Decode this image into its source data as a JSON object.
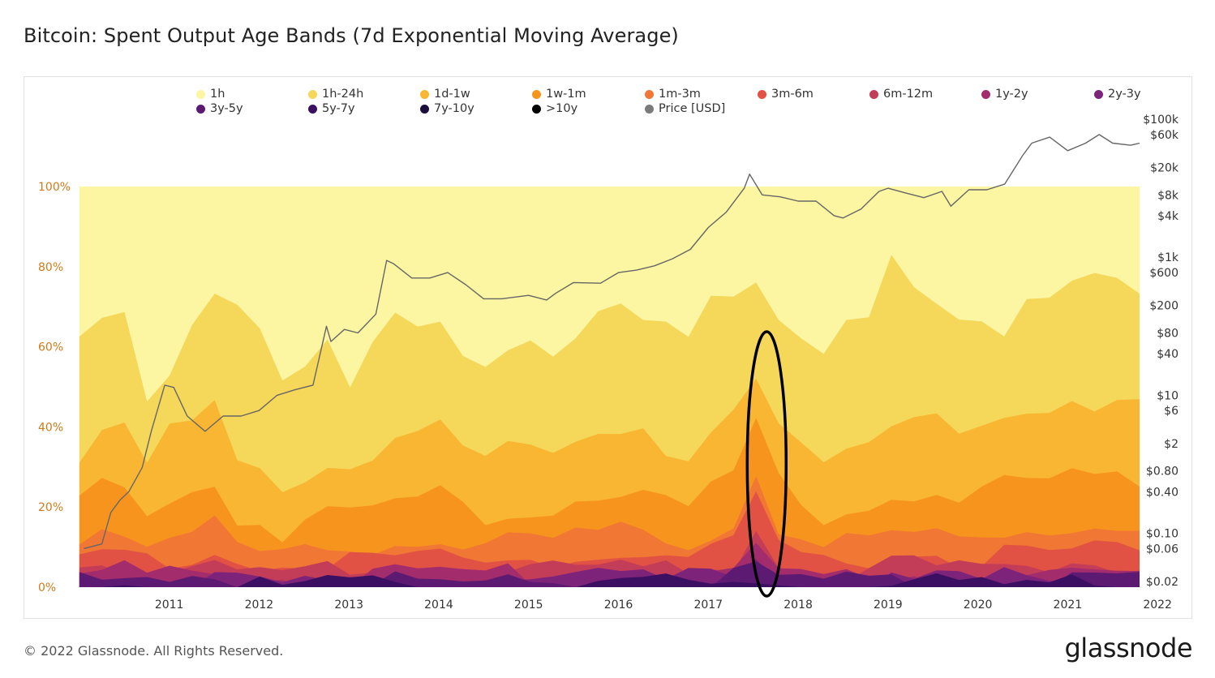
{
  "title": "Bitcoin: Spent Output Age Bands (7d Exponential Moving Average)",
  "footer": {
    "copyright": "© 2022 Glassnode. All Rights Reserved.",
    "logo": "glassnode"
  },
  "watermark": "glassnode",
  "legend": [
    {
      "label": "1h",
      "color": "#fcf5a2"
    },
    {
      "label": "1h-24h",
      "color": "#f5d75a"
    },
    {
      "label": "1d-1w",
      "color": "#f8b632"
    },
    {
      "label": "1w-1m",
      "color": "#f7941e"
    },
    {
      "label": "1m-3m",
      "color": "#f07734"
    },
    {
      "label": "3m-6m",
      "color": "#e15144"
    },
    {
      "label": "6m-12m",
      "color": "#c43d58"
    },
    {
      "label": "1y-2y",
      "color": "#a32c6c"
    },
    {
      "label": "2y-3y",
      "color": "#7d2379"
    },
    {
      "label": "3y-5y",
      "color": "#5c1a72"
    },
    {
      "label": "5y-7y",
      "color": "#3b1063"
    },
    {
      "label": "7y-10y",
      "color": "#1a0e3c"
    },
    {
      "label": ">10y",
      "color": "#000000"
    },
    {
      "label": "Price [USD]",
      "color": "#7a7a7a"
    }
  ],
  "chart_data": {
    "type": "area",
    "stacked": true,
    "normalized": true,
    "x_ticks": [
      "2011",
      "2012",
      "2013",
      "2014",
      "2015",
      "2016",
      "2017",
      "2018",
      "2019",
      "2020",
      "2021",
      "2022"
    ],
    "y_left_ticks": [
      "0%",
      "20%",
      "40%",
      "60%",
      "80%",
      "100%"
    ],
    "y_left_range": [
      0,
      100
    ],
    "y_right_scale": "log",
    "y_right_ticks": [
      {
        "label": "$100k",
        "value": 100000
      },
      {
        "label": "$60k",
        "value": 60000
      },
      {
        "label": "$20k",
        "value": 20000
      },
      {
        "label": "$8k",
        "value": 8000
      },
      {
        "label": "$4k",
        "value": 4000
      },
      {
        "label": "$1k",
        "value": 1000
      },
      {
        "label": "$600",
        "value": 600
      },
      {
        "label": "$200",
        "value": 200
      },
      {
        "label": "$80",
        "value": 80
      },
      {
        "label": "$40",
        "value": 40
      },
      {
        "label": "$10",
        "value": 10
      },
      {
        "label": "$6",
        "value": 6
      },
      {
        "label": "$2",
        "value": 2
      },
      {
        "label": "$0.80",
        "value": 0.8
      },
      {
        "label": "$0.40",
        "value": 0.4
      },
      {
        "label": "$0.10",
        "value": 0.1
      },
      {
        "label": "$0.06",
        "value": 0.06
      },
      {
        "label": "$0.02",
        "value": 0.02
      }
    ],
    "cumulative_series": [
      {
        "name": "1h",
        "color": "#fcf5a2",
        "values": [
          100,
          100,
          100,
          100,
          100,
          100,
          100,
          100,
          100,
          100,
          100,
          100,
          100,
          100,
          100,
          100,
          100,
          100,
          100,
          100,
          100,
          100,
          100,
          100,
          100,
          100,
          100,
          100,
          100,
          100,
          100,
          100,
          100,
          100,
          100,
          100,
          100,
          100,
          100,
          100,
          100,
          100,
          100,
          100,
          100,
          100,
          100,
          100
        ]
      },
      {
        "name": "1h-24h",
        "color": "#f5d75a",
        "values": [
          62,
          68,
          70,
          48,
          55,
          66,
          74,
          72,
          66,
          50,
          55,
          60,
          48,
          60,
          66,
          64,
          68,
          60,
          55,
          60,
          62,
          58,
          65,
          67,
          68,
          66,
          64,
          62,
          70,
          72,
          75,
          68,
          64,
          60,
          68,
          70,
          84,
          75,
          70,
          66,
          64,
          60,
          70,
          72,
          75,
          76,
          78,
          76
        ]
      },
      {
        "name": "1d-1w",
        "color": "#f8b632",
        "values": [
          34,
          42,
          40,
          30,
          38,
          40,
          45,
          30,
          28,
          25,
          28,
          30,
          30,
          34,
          38,
          40,
          42,
          34,
          30,
          35,
          34,
          32,
          36,
          38,
          40,
          40,
          34,
          34,
          40,
          45,
          55,
          42,
          36,
          30,
          34,
          34,
          38,
          40,
          42,
          40,
          42,
          44,
          46,
          45,
          48,
          44,
          46,
          44
        ]
      },
      {
        "name": "1w-1m",
        "color": "#f7941e",
        "values": [
          22,
          26,
          24,
          18,
          22,
          24,
          26,
          18,
          16,
          14,
          16,
          18,
          18,
          20,
          22,
          22,
          24,
          20,
          18,
          20,
          20,
          19,
          22,
          24,
          25,
          24,
          20,
          20,
          24,
          28,
          40,
          26,
          22,
          18,
          20,
          20,
          22,
          24,
          24,
          23,
          24,
          26,
          27,
          27,
          29,
          27,
          28,
          27
        ]
      },
      {
        "name": "1m-3m",
        "color": "#f07734",
        "values": [
          13,
          15,
          14,
          10,
          12,
          13,
          15,
          10,
          9,
          8,
          9,
          10,
          10,
          11,
          12,
          12,
          13,
          11,
          10,
          11,
          11,
          11,
          12,
          13,
          14,
          13,
          11,
          11,
          13,
          16,
          30,
          15,
          12,
          10,
          11,
          11,
          12,
          13,
          13,
          12,
          13,
          14,
          15,
          15,
          16,
          15,
          15,
          15
        ]
      },
      {
        "name": "3m-6m",
        "color": "#e15144",
        "values": [
          8,
          9,
          9,
          6,
          7,
          8,
          9,
          6,
          5,
          5,
          5,
          6,
          6,
          7,
          7,
          7,
          8,
          6,
          6,
          7,
          7,
          6,
          7,
          8,
          8,
          8,
          7,
          7,
          8,
          10,
          22,
          9,
          7,
          6,
          7,
          7,
          7,
          8,
          8,
          7,
          8,
          8,
          9,
          9,
          9,
          9,
          9,
          9
        ]
      },
      {
        "name": "6m-12m",
        "color": "#c43d58",
        "values": [
          5,
          6,
          6,
          4,
          4,
          5,
          6,
          4,
          3,
          3,
          3,
          4,
          4,
          4,
          4,
          4,
          5,
          4,
          4,
          4,
          4,
          4,
          5,
          5,
          5,
          5,
          4,
          4,
          5,
          6,
          16,
          6,
          5,
          4,
          4,
          4,
          5,
          5,
          5,
          4,
          5,
          5,
          6,
          6,
          6,
          6,
          6,
          6
        ]
      },
      {
        "name": "1y-2y",
        "color": "#a32c6c",
        "values": [
          3,
          4,
          4,
          2,
          3,
          3,
          4,
          2,
          2,
          2,
          2,
          2,
          2,
          3,
          3,
          3,
          3,
          2,
          2,
          3,
          3,
          3,
          3,
          3,
          3,
          3,
          3,
          3,
          3,
          4,
          11,
          4,
          3,
          2,
          3,
          3,
          3,
          3,
          3,
          3,
          3,
          3,
          4,
          4,
          4,
          4,
          4,
          4
        ]
      },
      {
        "name": "2y-3y",
        "color": "#7d2379",
        "values": [
          2,
          2,
          2,
          1,
          2,
          2,
          2,
          1,
          1,
          1,
          1,
          1,
          1,
          2,
          2,
          2,
          2,
          1,
          1,
          2,
          2,
          2,
          2,
          2,
          2,
          2,
          2,
          2,
          2,
          3,
          8,
          3,
          2,
          1,
          2,
          2,
          2,
          2,
          2,
          2,
          2,
          2,
          2,
          2,
          2,
          2,
          2,
          2
        ]
      },
      {
        "name": "3y-5y",
        "color": "#5c1a72",
        "values": [
          1,
          1,
          1,
          1,
          1,
          1,
          1,
          1,
          1,
          1,
          1,
          1,
          1,
          1,
          1,
          1,
          1,
          1,
          1,
          1,
          1,
          1,
          1,
          1,
          1,
          1,
          1,
          1,
          1,
          2,
          5,
          2,
          1,
          1,
          1,
          1,
          1,
          1,
          1,
          1,
          1,
          1,
          1,
          1,
          1,
          1,
          1,
          1
        ]
      },
      {
        "name": "5y-7y",
        "color": "#3b1063",
        "values": [
          0.5,
          0.5,
          0.5,
          0.5,
          0.5,
          0.5,
          0.5,
          0.5,
          0.5,
          0.5,
          0.5,
          0.5,
          0.5,
          0.5,
          0.5,
          0.5,
          0.5,
          0.5,
          0.5,
          0.5,
          0.5,
          0.5,
          0.5,
          0.5,
          0.5,
          0.5,
          0.5,
          0.5,
          0.5,
          0.8,
          2,
          0.8,
          0.5,
          0.5,
          0.5,
          0.5,
          0.5,
          0.5,
          0.5,
          0.5,
          0.5,
          0.5,
          0.5,
          0.5,
          0.5,
          0.5,
          0.5,
          0.5
        ]
      }
    ],
    "series_x_range": [
      2010.5,
      2022.3
    ],
    "price_series": {
      "name": "Price [USD]",
      "x": [
        2010.55,
        2010.75,
        2010.85,
        2010.95,
        2011.05,
        2011.2,
        2011.3,
        2011.45,
        2011.55,
        2011.7,
        2011.9,
        2012.1,
        2012.3,
        2012.5,
        2012.7,
        2012.9,
        2013.1,
        2013.25,
        2013.3,
        2013.45,
        2013.6,
        2013.8,
        2013.92,
        2014.0,
        2014.2,
        2014.4,
        2014.6,
        2014.8,
        2015.0,
        2015.2,
        2015.5,
        2015.7,
        2015.8,
        2016.0,
        2016.3,
        2016.5,
        2016.7,
        2016.9,
        2017.1,
        2017.3,
        2017.5,
        2017.7,
        2017.9,
        2017.96,
        2018.1,
        2018.3,
        2018.5,
        2018.7,
        2018.9,
        2019.0,
        2019.2,
        2019.4,
        2019.5,
        2019.7,
        2019.9,
        2020.1,
        2020.2,
        2020.4,
        2020.6,
        2020.8,
        2021.0,
        2021.1,
        2021.3,
        2021.5,
        2021.7,
        2021.85,
        2022.0,
        2022.2,
        2022.3
      ],
      "y": [
        0.06,
        0.07,
        0.2,
        0.3,
        0.4,
        0.9,
        3,
        14,
        13,
        5,
        3,
        5,
        5,
        6,
        10,
        12,
        14,
        100,
        60,
        90,
        80,
        150,
        900,
        800,
        500,
        500,
        600,
        400,
        250,
        250,
        280,
        240,
        300,
        430,
        420,
        600,
        650,
        750,
        950,
        1300,
        2700,
        4500,
        10000,
        16000,
        8000,
        7500,
        6500,
        6500,
        4000,
        3700,
        5000,
        9000,
        10000,
        8500,
        7300,
        9000,
        5500,
        9500,
        9500,
        11500,
        30000,
        45000,
        55000,
        35000,
        45000,
        60000,
        45000,
        42000,
        45000
      ]
    },
    "annotation": {
      "shape": "ellipse",
      "x_center": 2018.15,
      "description": "highlighted spike"
    }
  }
}
